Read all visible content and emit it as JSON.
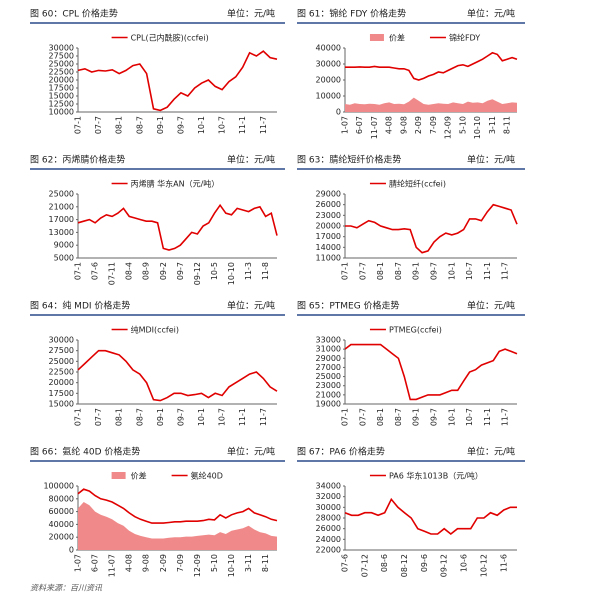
{
  "chart_data": [
    {
      "type": "line",
      "title": "图 60：CPL 价格走势",
      "unit": "单位：元/吨",
      "categories": [
        "07-1",
        null,
        null,
        "07-7",
        null,
        null,
        "08-1",
        null,
        null,
        "08-7",
        null,
        null,
        "09-1",
        null,
        null,
        "09-7",
        null,
        null,
        "10-1",
        null,
        null,
        "10-7",
        null,
        null,
        "11-1",
        null,
        null,
        "11-7",
        null,
        null
      ],
      "series": [
        {
          "name": "CPL(己内酰胺)(ccfei)",
          "color": "#e00000",
          "values": [
            23000,
            23500,
            22500,
            23000,
            22800,
            23200,
            22000,
            23000,
            24500,
            25000,
            22000,
            11000,
            10500,
            11500,
            14000,
            16000,
            15000,
            17500,
            19000,
            20000,
            18000,
            17000,
            19500,
            21000,
            24000,
            28500,
            27500,
            29000,
            27000,
            26500
          ]
        }
      ],
      "ylim": [
        10000,
        30000
      ],
      "yticks": [
        10000,
        12500,
        15000,
        17500,
        20000,
        22500,
        25000,
        27500,
        30000
      ]
    },
    {
      "type": "line",
      "title": "图 61：锦纶 FDY 价格走势",
      "unit": "单位：元/吨",
      "categories": [
        "1-07",
        null,
        null,
        "6-07",
        null,
        null,
        "11-07",
        null,
        null,
        "4-08",
        null,
        null,
        "9-08",
        null,
        null,
        "2-09",
        null,
        null,
        "7-09",
        null,
        null,
        "12-09",
        null,
        null,
        "5-10",
        null,
        null,
        "10-10",
        null,
        null,
        "3-11",
        null,
        null,
        "8-11",
        null,
        null
      ],
      "series": [
        {
          "name": "价差",
          "color": "#f08a8a",
          "type": "area",
          "values": [
            5000,
            4500,
            5500,
            5000,
            4800,
            5200,
            5000,
            4500,
            5500,
            6000,
            5000,
            5200,
            4800,
            6500,
            9000,
            7000,
            5000,
            4500,
            5000,
            5500,
            5200,
            5000,
            6000,
            5500,
            5000,
            6500,
            5800,
            6000,
            5500,
            7000,
            8000,
            6500,
            5000,
            5500,
            6000,
            5800
          ]
        },
        {
          "name": "锦纶FDY",
          "color": "#e00000",
          "values": [
            28000,
            28000,
            28000,
            28200,
            28000,
            28000,
            28500,
            28000,
            28000,
            28000,
            27500,
            27000,
            27000,
            26000,
            21000,
            20000,
            21000,
            22500,
            23500,
            25000,
            24500,
            26000,
            27500,
            29000,
            29500,
            28500,
            30000,
            31500,
            33000,
            35000,
            37000,
            36000,
            32000,
            33000,
            34000,
            33000
          ]
        }
      ],
      "ylim": [
        0,
        40000
      ],
      "yticks": [
        0,
        10000,
        20000,
        30000,
        40000
      ]
    },
    {
      "type": "line",
      "title": "图 62：丙烯腈价格走势",
      "unit": "单位：元/吨",
      "categories": [
        "07-1",
        null,
        null,
        "07-6",
        null,
        null,
        "07-11",
        null,
        null,
        "08-4",
        null,
        null,
        "08-9",
        null,
        null,
        "09-2",
        null,
        null,
        "09-7",
        null,
        null,
        "09-12",
        null,
        null,
        "10-5",
        null,
        null,
        "10-10",
        null,
        null,
        "11-3",
        null,
        null,
        "11-8",
        null,
        null
      ],
      "series": [
        {
          "name": "丙烯腈 华东AN（元/吨）",
          "color": "#e00000",
          "values": [
            16000,
            16500,
            17000,
            16000,
            17500,
            18500,
            18000,
            19000,
            20500,
            18000,
            17500,
            17000,
            16500,
            16500,
            16000,
            8000,
            7500,
            8000,
            9000,
            11000,
            13000,
            12500,
            15000,
            16000,
            19000,
            21500,
            19000,
            18500,
            20500,
            20000,
            19500,
            20500,
            21000,
            18000,
            19000,
            12000
          ]
        }
      ],
      "ylim": [
        5000,
        25000
      ],
      "yticks": [
        5000,
        9000,
        13000,
        17000,
        21000,
        25000
      ]
    },
    {
      "type": "line",
      "title": "图 63：腈纶短纤价格走势",
      "unit": "单位：元/吨",
      "categories": [
        "07-1",
        null,
        null,
        "07-7",
        null,
        null,
        "08-1",
        null,
        null,
        "08-7",
        null,
        null,
        "09-1",
        null,
        null,
        "09-7",
        null,
        null,
        "10-1",
        null,
        null,
        "10-7",
        null,
        null,
        "11-1",
        null,
        null,
        "11-7",
        null,
        null
      ],
      "series": [
        {
          "name": "腈纶短纤(ccfei)",
          "color": "#e00000",
          "values": [
            20000,
            20000,
            19500,
            20500,
            21500,
            21000,
            20000,
            19500,
            19000,
            19000,
            19200,
            19000,
            14000,
            12500,
            13000,
            15500,
            17000,
            18000,
            17500,
            18000,
            19000,
            22000,
            22000,
            21500,
            24000,
            26000,
            25500,
            25000,
            24500,
            20500
          ]
        }
      ],
      "ylim": [
        11000,
        29000
      ],
      "yticks": [
        11000,
        14000,
        17000,
        20000,
        23000,
        26000,
        29000
      ]
    },
    {
      "type": "line",
      "title": "图 64：纯 MDI 价格走势",
      "unit": "单位：元/吨",
      "categories": [
        "07-1",
        null,
        null,
        "07-7",
        null,
        null,
        "08-1",
        null,
        null,
        "08-7",
        null,
        null,
        "09-1",
        null,
        null,
        "09-7",
        null,
        null,
        "10-1",
        null,
        null,
        "10-7",
        null,
        null,
        "11-1",
        null,
        null,
        "11-7",
        null,
        null
      ],
      "series": [
        {
          "name": "纯MDI(ccfei)",
          "color": "#e00000",
          "values": [
            23000,
            24500,
            26000,
            27500,
            27500,
            27000,
            26500,
            25000,
            23000,
            22000,
            20000,
            16000,
            15800,
            16500,
            17500,
            17500,
            17000,
            17200,
            17500,
            16500,
            17500,
            17000,
            19000,
            20000,
            21000,
            22000,
            22500,
            21000,
            19000,
            18000
          ]
        }
      ],
      "ylim": [
        15000,
        30000
      ],
      "yticks": [
        15000,
        17500,
        20000,
        22500,
        25000,
        27500,
        30000
      ]
    },
    {
      "type": "line",
      "title": "图 65：PTMEG 价格走势",
      "unit": "单位：元/吨",
      "categories": [
        "07-1",
        null,
        null,
        "07-7",
        null,
        null,
        "08-1",
        null,
        null,
        "08-7",
        null,
        null,
        "09-1",
        null,
        null,
        "09-7",
        null,
        null,
        "10-1",
        null,
        null,
        "10-7",
        null,
        null,
        "11-1",
        null,
        null,
        "11-7",
        null,
        null
      ],
      "series": [
        {
          "name": "PTMEG(ccfei)",
          "color": "#e00000",
          "values": [
            31000,
            32000,
            32000,
            32000,
            32000,
            32000,
            32000,
            31000,
            30000,
            29000,
            25000,
            20000,
            20000,
            20500,
            21000,
            21000,
            21000,
            21500,
            22000,
            22000,
            24000,
            26000,
            26500,
            27500,
            28000,
            28500,
            30500,
            31000,
            30500,
            30000
          ]
        }
      ],
      "ylim": [
        19000,
        33000
      ],
      "yticks": [
        19000,
        21000,
        23000,
        25000,
        27000,
        29000,
        31000,
        33000
      ]
    },
    {
      "type": "line",
      "title": "图 66：氨纶 40D 价格走势",
      "unit": "单位：元/吨",
      "categories": [
        "1-07",
        null,
        null,
        "6-07",
        null,
        null,
        "11-07",
        null,
        null,
        "4-08",
        null,
        null,
        "9-08",
        null,
        null,
        "2-09",
        null,
        null,
        "7-09",
        null,
        null,
        "12-09",
        null,
        null,
        "5-10",
        null,
        null,
        "10-10",
        null,
        null,
        "3-11",
        null,
        null,
        "8-11",
        null,
        null
      ],
      "series": [
        {
          "name": "价差",
          "color": "#f08a8a",
          "type": "area",
          "values": [
            65000,
            75000,
            70000,
            60000,
            55000,
            52000,
            48000,
            42000,
            38000,
            30000,
            25000,
            22000,
            20000,
            18000,
            18000,
            18000,
            19000,
            20000,
            20000,
            21000,
            21000,
            22000,
            23000,
            24000,
            23000,
            28000,
            25000,
            30000,
            32000,
            34000,
            38000,
            32000,
            28000,
            26000,
            22000,
            21000
          ]
        },
        {
          "name": "氨纶40D",
          "color": "#e00000",
          "values": [
            88000,
            95000,
            92000,
            85000,
            80000,
            78000,
            75000,
            70000,
            65000,
            58000,
            52000,
            48000,
            45000,
            42000,
            42000,
            42000,
            43000,
            44000,
            44000,
            45000,
            45000,
            45000,
            46000,
            48000,
            47000,
            55000,
            50000,
            55000,
            58000,
            60000,
            65000,
            58000,
            55000,
            52000,
            48000,
            46000
          ]
        }
      ],
      "ylim": [
        0,
        100000
      ],
      "yticks": [
        0,
        20000,
        40000,
        60000,
        80000,
        100000
      ]
    },
    {
      "type": "line",
      "title": "图 67：PA6 价格走势",
      "unit": "单位：元/吨",
      "categories": [
        "07-6",
        null,
        null,
        "07-12",
        null,
        null,
        "08-6",
        null,
        null,
        "08-12",
        null,
        null,
        "09-6",
        null,
        null,
        "09-12",
        null,
        null,
        "10-6",
        null,
        null,
        "10-12",
        null,
        null,
        "11-6",
        null,
        null
      ],
      "series": [
        {
          "name": "PA6  华东1013B（元/吨）",
          "color": "#e00000",
          "values": [
            29000,
            28500,
            28500,
            29000,
            29000,
            28500,
            29000,
            31500,
            30000,
            29000,
            28000,
            26000,
            25500,
            25000,
            25000,
            26000,
            25000,
            26000,
            26000,
            26000,
            28000,
            28000,
            29000,
            28500,
            29500,
            30000,
            30000
          ]
        }
      ],
      "ylim": [
        22000,
        34000
      ],
      "yticks": [
        22000,
        24000,
        26000,
        28000,
        30000,
        32000,
        34000
      ]
    }
  ],
  "source": "资料来源：百川资讯"
}
